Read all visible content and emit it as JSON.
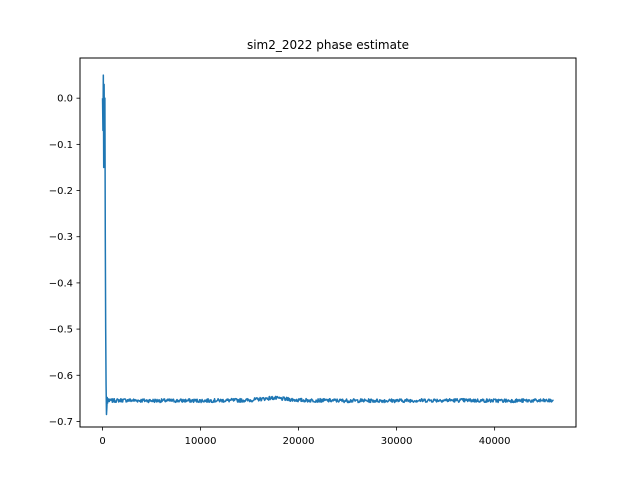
{
  "chart_data": {
    "type": "line",
    "title": "sim2_2022 phase estimate",
    "xlabel": "",
    "ylabel": "",
    "xlim": [
      -2300,
      48300
    ],
    "ylim": [
      -0.712,
      0.087
    ],
    "grid": false,
    "x_ticks": [
      0,
      10000,
      20000,
      30000,
      40000
    ],
    "x_tick_labels": [
      "0",
      "10000",
      "20000",
      "30000",
      "40000"
    ],
    "y_ticks": [
      0.0,
      -0.1,
      -0.2,
      -0.3,
      -0.4,
      -0.5,
      -0.6,
      -0.7
    ],
    "y_tick_labels": [
      "0.0",
      "−0.1",
      "−0.2",
      "−0.3",
      "−0.4",
      "−0.5",
      "−0.6",
      "−0.7"
    ],
    "series": [
      {
        "name": "phase estimate",
        "color": "#1f77b4",
        "x": [
          0,
          40,
          80,
          120,
          160,
          200,
          240,
          280,
          320,
          360,
          400,
          440,
          480,
          520,
          560,
          600,
          700,
          800,
          1000,
          2000,
          5000,
          10000,
          15000,
          17300,
          20000,
          25000,
          30000,
          35000,
          40000,
          46000
        ],
        "y": [
          0.0,
          -0.07,
          0.05,
          -0.15,
          0.03,
          -0.1,
          0.0,
          -0.3,
          -0.5,
          -0.62,
          -0.685,
          -0.67,
          -0.648,
          -0.66,
          -0.655,
          -0.652,
          -0.657,
          -0.654,
          -0.655,
          -0.654,
          -0.655,
          -0.655,
          -0.654,
          -0.649,
          -0.654,
          -0.655,
          -0.655,
          -0.654,
          -0.655,
          -0.655
        ]
      }
    ],
    "noise_amplitude": 0.004
  }
}
